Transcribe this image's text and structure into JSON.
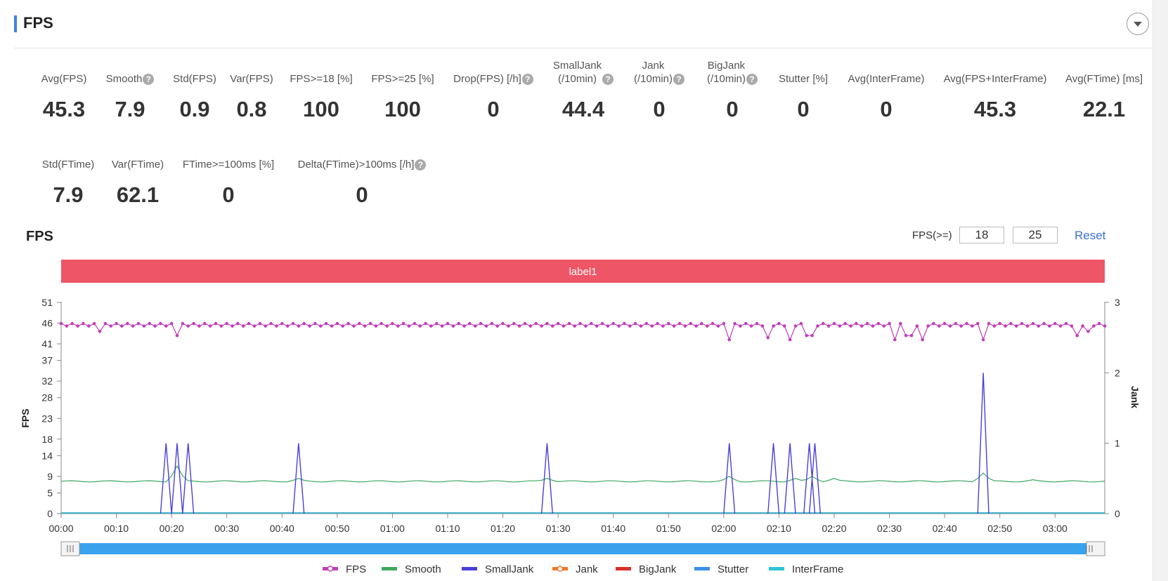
{
  "header": {
    "title": "FPS"
  },
  "metrics": [
    {
      "label": "Avg(FPS)",
      "value": "45.3",
      "help": false
    },
    {
      "label": "Smooth",
      "value": "7.9",
      "help": true
    },
    {
      "label": "Std(FPS)",
      "value": "0.9",
      "help": false
    },
    {
      "label": "Var(FPS)",
      "value": "0.8",
      "help": false
    },
    {
      "label": "FPS>=18 [%]",
      "value": "100",
      "help": false
    },
    {
      "label": "FPS>=25 [%]",
      "value": "100",
      "help": false
    },
    {
      "label": "Drop(FPS) [/h]",
      "value": "0",
      "help": true
    },
    {
      "label": "SmallJank\n(/10min)",
      "value": "44.4",
      "help": true
    },
    {
      "label": "Jank\n(/10min)",
      "value": "0",
      "help": true
    },
    {
      "label": "BigJank\n(/10min)",
      "value": "0",
      "help": true
    },
    {
      "label": "Stutter [%]",
      "value": "0",
      "help": false
    },
    {
      "label": "Avg(InterFrame)",
      "value": "0",
      "help": false
    },
    {
      "label": "Avg(FPS+InterFrame)",
      "value": "45.3",
      "help": false
    },
    {
      "label": "Avg(FTime) [ms]",
      "value": "22.1",
      "help": false
    },
    {
      "label": "Std(FTime)",
      "value": "7.9",
      "help": false
    },
    {
      "label": "Var(FTime)",
      "value": "62.1",
      "help": false
    },
    {
      "label": "FTime>=100ms [%]",
      "value": "0",
      "help": false
    },
    {
      "label": "Delta(FTime)>100ms [/h]",
      "value": "0",
      "help": true
    }
  ],
  "help_glyph": "?",
  "chart_section": {
    "title": "FPS",
    "threshold_label": "FPS(>=)",
    "threshold_low": "18",
    "threshold_high": "25",
    "reset_label": "Reset",
    "collapse_icon": "chevron-down-icon"
  },
  "chart_data": {
    "type": "line",
    "title": "FPS",
    "label_band": "label1",
    "label_band_color": "#ee5566",
    "ylabel_left": "FPS",
    "ylabel_right": "Jank",
    "y_left_ticks": [
      "0",
      "5",
      "9",
      "14",
      "18",
      "23",
      "28",
      "32",
      "37",
      "41",
      "46",
      "51"
    ],
    "y_left_range": [
      0,
      51
    ],
    "y_right_ticks": [
      "0",
      "1",
      "2",
      "3"
    ],
    "y_right_range": [
      0,
      3
    ],
    "x_ticks": [
      "00:00",
      "00:10",
      "00:20",
      "00:30",
      "00:40",
      "00:50",
      "01:00",
      "01:10",
      "01:20",
      "01:30",
      "01:40",
      "01:50",
      "02:00",
      "02:10",
      "02:20",
      "02:30",
      "02:40",
      "02:50",
      "03:00"
    ],
    "x_range_seconds": [
      0,
      189
    ],
    "series": [
      {
        "name": "FPS",
        "color": "#c23fba",
        "axis": "left",
        "base": 45.6,
        "amplitude": 0.6,
        "dips": [
          [
            7,
            44
          ],
          [
            21,
            43
          ],
          [
            121,
            42
          ],
          [
            128,
            42.5
          ],
          [
            132,
            42
          ],
          [
            135,
            43
          ],
          [
            136,
            43
          ],
          [
            151,
            42
          ],
          [
            153,
            43
          ],
          [
            154,
            43
          ],
          [
            156,
            42
          ],
          [
            167,
            42
          ],
          [
            184,
            43
          ],
          [
            186,
            44
          ]
        ]
      },
      {
        "name": "Smooth",
        "color": "#3fa860",
        "axis": "left",
        "base": 7.8,
        "bumps": [
          [
            21,
            11.5
          ],
          [
            43,
            8.5
          ],
          [
            88,
            8.5
          ],
          [
            121,
            9
          ],
          [
            133,
            8.5
          ],
          [
            136,
            9
          ],
          [
            140,
            8.5
          ],
          [
            167,
            9.8
          ],
          [
            176,
            8.2
          ]
        ]
      },
      {
        "name": "SmallJank",
        "color": "#4a3fd8",
        "axis": "right",
        "spikes": [
          [
            19,
            1
          ],
          [
            21,
            1
          ],
          [
            23,
            1
          ],
          [
            43,
            1
          ],
          [
            88,
            1
          ],
          [
            121,
            1
          ],
          [
            129,
            1
          ],
          [
            132,
            1
          ],
          [
            135.5,
            1
          ],
          [
            136.5,
            1
          ],
          [
            167,
            2
          ]
        ]
      },
      {
        "name": "Jank",
        "color": "#f07a2a",
        "axis": "right",
        "value": 0
      },
      {
        "name": "BigJank",
        "color": "#d93030",
        "axis": "right",
        "value": 0
      },
      {
        "name": "Stutter",
        "color": "#3b8fe6",
        "axis": "left",
        "value": 0
      },
      {
        "name": "InterFrame",
        "color": "#2ec4d6",
        "axis": "left",
        "value": 0
      }
    ],
    "legend_position": "bottom",
    "zoom_slider": {
      "start_fraction": 0,
      "end_fraction": 1,
      "color": "#3aa3ee"
    }
  }
}
